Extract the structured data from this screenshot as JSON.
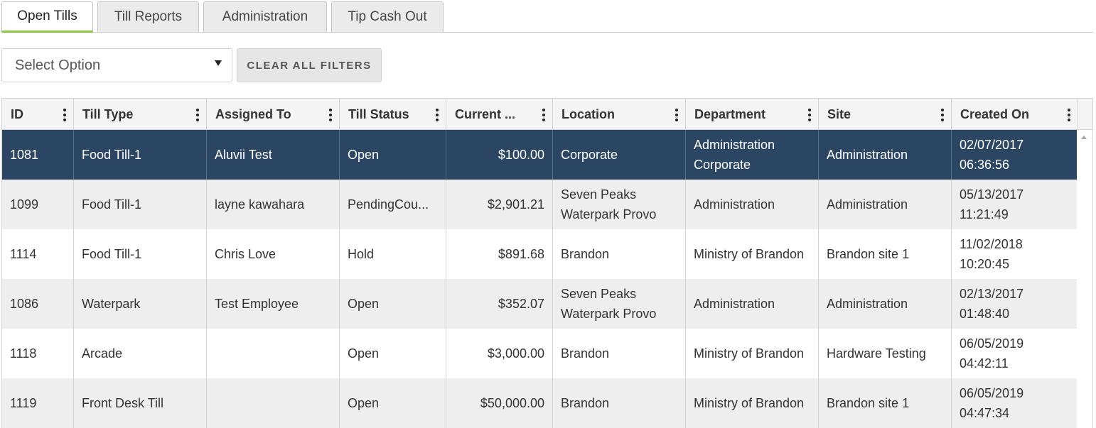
{
  "tabs": [
    {
      "label": "Open Tills",
      "active": true
    },
    {
      "label": "Till Reports",
      "active": false
    },
    {
      "label": "Administration",
      "active": false
    },
    {
      "label": "Tip Cash Out",
      "active": false
    }
  ],
  "filters": {
    "select_value": "Select Option",
    "clear_label": "CLEAR ALL FILTERS"
  },
  "table": {
    "columns": [
      "ID",
      "Till Type",
      "Assigned To",
      "Till Status",
      "Current ...",
      "Location",
      "Department",
      "Site",
      "Created On"
    ],
    "rows": [
      {
        "id": "1081",
        "till_type": "Food Till-1",
        "assigned_to": "Aluvii Test",
        "status": "Open",
        "current": "$100.00",
        "location": "Corporate",
        "department": "Administration Corporate",
        "site": "Administration",
        "created_on": "02/07/2017 06:36:56",
        "selected": true
      },
      {
        "id": "1099",
        "till_type": "Food Till-1",
        "assigned_to": "layne kawahara",
        "status": "PendingCou...",
        "current": "$2,901.21",
        "location": "Seven Peaks Waterpark Provo",
        "department": "Administration",
        "site": "Administration",
        "created_on": "05/13/2017 11:21:49",
        "selected": false
      },
      {
        "id": "1114",
        "till_type": "Food Till-1",
        "assigned_to": "Chris Love",
        "status": "Hold",
        "current": "$891.68",
        "location": "Brandon",
        "department": "Ministry of Brandon",
        "site": "Brandon site 1",
        "created_on": "11/02/2018 10:20:45",
        "selected": false
      },
      {
        "id": "1086",
        "till_type": "Waterpark",
        "assigned_to": "Test Employee",
        "status": "Open",
        "current": "$352.07",
        "location": "Seven Peaks Waterpark Provo",
        "department": "Administration",
        "site": "Administration",
        "created_on": "02/13/2017 01:48:40",
        "selected": false
      },
      {
        "id": "1118",
        "till_type": "Arcade",
        "assigned_to": "",
        "status": "Open",
        "current": "$3,000.00",
        "location": "Brandon",
        "department": "Ministry of Brandon",
        "site": "Hardware Testing",
        "created_on": "06/05/2019 04:42:11",
        "selected": false
      },
      {
        "id": "1119",
        "till_type": "Front Desk Till",
        "assigned_to": "",
        "status": "Open",
        "current": "$50,000.00",
        "location": "Brandon",
        "department": "Ministry of Brandon",
        "site": "Brandon site 1",
        "created_on": "06/05/2019 04:47:34",
        "selected": false
      }
    ]
  },
  "icons": {
    "column_menu": "kebab-menu-icon",
    "dropdown": "caret-down-icon",
    "scroll_up": "scroll-up-arrow-icon"
  },
  "colors": {
    "active_tab_accent": "#8cc63f",
    "selected_row": "#2b4663",
    "alt_row": "#efeeee"
  }
}
